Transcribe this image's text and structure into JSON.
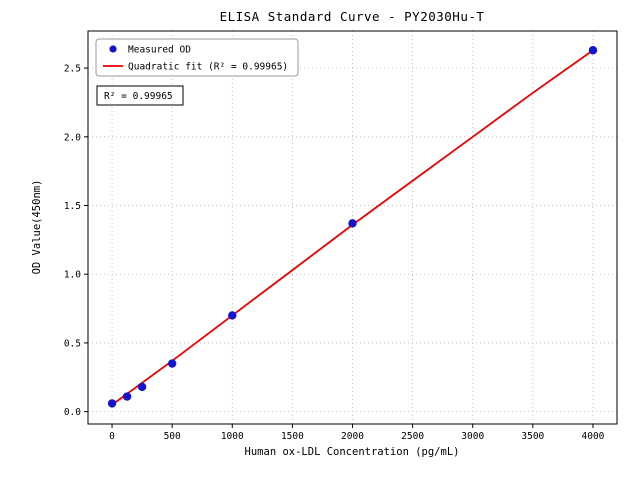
{
  "chart_data": {
    "type": "scatter",
    "title": "ELISA Standard Curve - PY2030Hu-T",
    "xlabel": "Human ox-LDL Concentration (pg/mL)",
    "ylabel": "OD Value(450nm)",
    "xlim": [
      -200,
      4200
    ],
    "ylim": [
      -0.09,
      2.77
    ],
    "x_ticks": [
      0,
      500,
      1000,
      1500,
      2000,
      2500,
      3000,
      3500,
      4000
    ],
    "y_ticks": [
      0.0,
      0.5,
      1.0,
      1.5,
      2.0,
      2.5
    ],
    "y_tick_labels": [
      "0.0",
      "0.5",
      "1.0",
      "1.5",
      "2.0",
      "2.5"
    ],
    "grid": true,
    "legend_position": "upper-left",
    "series": [
      {
        "name": "Measured OD",
        "type": "scatter",
        "color": "#1414cc",
        "x": [
          0,
          125,
          250,
          500,
          1000,
          2000,
          4000
        ],
        "y": [
          0.06,
          0.11,
          0.18,
          0.35,
          0.7,
          1.37,
          2.63
        ]
      },
      {
        "name": "Quadratic fit (R² = 0.99965)",
        "type": "line",
        "color": "#ee0000",
        "x": [
          0,
          500,
          1000,
          1500,
          2000,
          2500,
          3000,
          3500,
          4000
        ],
        "y": [
          0.05,
          0.37,
          0.7,
          1.03,
          1.36,
          1.68,
          2.0,
          2.32,
          2.63
        ]
      }
    ],
    "annotation": "R² = 0.99965",
    "r_squared": 0.99965
  },
  "legend": {
    "items": [
      {
        "label": "Measured OD"
      },
      {
        "label": "Quadratic fit (R² = 0.99965)"
      }
    ]
  }
}
